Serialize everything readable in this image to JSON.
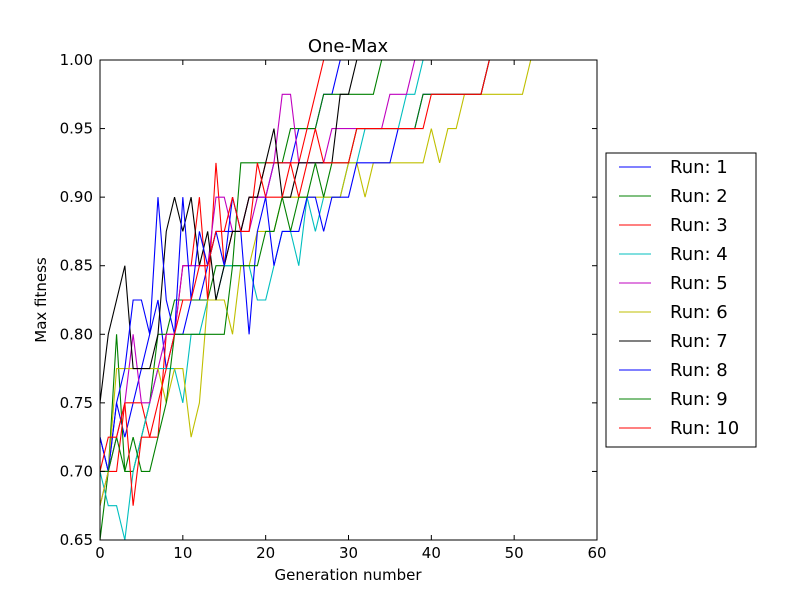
{
  "chart_data": {
    "type": "line",
    "title": "One-Max",
    "xlabel": "Generation number",
    "ylabel": "Max fitness",
    "xlim": [
      0,
      60
    ],
    "ylim": [
      0.65,
      1.0
    ],
    "xticks": [
      "0",
      "10",
      "20",
      "30",
      "40",
      "50",
      "60"
    ],
    "yticks": [
      "0.65",
      "0.70",
      "0.75",
      "0.80",
      "0.85",
      "0.90",
      "0.95",
      "1.00"
    ],
    "grid": false,
    "legend_position": "outside-right",
    "series": [
      {
        "name": "Run: 1",
        "color": "#0000ff",
        "x": [
          0,
          1,
          2,
          3,
          4,
          5,
          6,
          7,
          8,
          9,
          10,
          11,
          12,
          13,
          14,
          15,
          16,
          17,
          18,
          19,
          20,
          21,
          22,
          23,
          24,
          25,
          26,
          27,
          28,
          29,
          30,
          31,
          32,
          33,
          34,
          35,
          36,
          37,
          38
        ],
        "y": [
          0.725,
          0.7,
          0.75,
          0.725,
          0.75,
          0.775,
          0.8,
          0.825,
          0.775,
          0.8,
          0.8,
          0.825,
          0.825,
          0.85,
          0.875,
          0.875,
          0.875,
          0.875,
          0.9,
          0.9,
          0.9,
          0.925,
          0.925,
          0.925,
          0.95,
          0.95,
          0.95,
          0.975,
          0.975,
          1.0,
          1.0,
          1.0,
          1.0,
          1.0,
          1.0,
          1.0,
          1.0,
          1.0,
          1.0
        ]
      },
      {
        "name": "Run: 2",
        "color": "#008000",
        "x": [
          0,
          1,
          2,
          3,
          4,
          5,
          6,
          7,
          8,
          9,
          10,
          11,
          12,
          13,
          14,
          15,
          16,
          17,
          18,
          19,
          20,
          21,
          22,
          23,
          24,
          25,
          26,
          27,
          28,
          29,
          30,
          31,
          32,
          33,
          34,
          35,
          36,
          37
        ],
        "y": [
          0.65,
          0.7,
          0.8,
          0.7,
          0.7,
          0.725,
          0.75,
          0.8,
          0.8,
          0.825,
          0.825,
          0.825,
          0.825,
          0.825,
          0.85,
          0.85,
          0.85,
          0.925,
          0.925,
          0.925,
          0.925,
          0.925,
          0.925,
          0.95,
          0.95,
          0.95,
          0.95,
          0.975,
          0.975,
          0.975,
          0.975,
          0.975,
          0.975,
          0.975,
          1.0,
          1.0,
          1.0,
          1.0
        ]
      },
      {
        "name": "Run: 3",
        "color": "#ff0000",
        "x": [
          0,
          1,
          2,
          3,
          4,
          5,
          6,
          7,
          8,
          9,
          10,
          11,
          12,
          13,
          14,
          15,
          16,
          17,
          18,
          19,
          20,
          21,
          22,
          23,
          24,
          25,
          26,
          27
        ],
        "y": [
          0.7,
          0.7,
          0.7,
          0.75,
          0.75,
          0.75,
          0.725,
          0.725,
          0.8,
          0.8,
          0.85,
          0.85,
          0.9,
          0.825,
          0.925,
          0.85,
          0.875,
          0.875,
          0.9,
          0.9,
          0.925,
          0.925,
          0.925,
          0.925,
          0.925,
          0.95,
          0.975,
          1.0
        ]
      },
      {
        "name": "Run: 4",
        "color": "#00bfbf",
        "x": [
          0,
          1,
          2,
          3,
          4,
          5,
          6,
          7,
          8,
          9,
          10,
          11,
          12,
          13,
          14,
          15,
          16,
          17,
          18,
          19,
          20,
          21,
          22,
          23,
          24,
          25,
          26,
          27,
          28,
          29,
          30,
          31,
          32,
          33,
          34,
          35,
          36,
          37,
          38,
          39,
          40,
          41
        ],
        "y": [
          0.7,
          0.675,
          0.675,
          0.65,
          0.7,
          0.725,
          0.75,
          0.775,
          0.775,
          0.775,
          0.75,
          0.8,
          0.8,
          0.825,
          0.825,
          0.85,
          0.85,
          0.85,
          0.85,
          0.825,
          0.825,
          0.85,
          0.875,
          0.875,
          0.85,
          0.9,
          0.875,
          0.9,
          0.9,
          0.9,
          0.925,
          0.925,
          0.95,
          0.95,
          0.95,
          0.95,
          0.95,
          0.975,
          0.975,
          1.0,
          1.0,
          1.0
        ]
      },
      {
        "name": "Run: 5",
        "color": "#bf00bf",
        "x": [
          0,
          1,
          2,
          3,
          4,
          5,
          6,
          7,
          8,
          9,
          10,
          11,
          12,
          13,
          14,
          15,
          16,
          17,
          18,
          19,
          20,
          21,
          22,
          23,
          24,
          25,
          26,
          27,
          28,
          29,
          30,
          31,
          32,
          33,
          34,
          35,
          36,
          37,
          38,
          39
        ],
        "y": [
          0.675,
          0.7,
          0.725,
          0.75,
          0.8,
          0.75,
          0.75,
          0.775,
          0.8,
          0.8,
          0.85,
          0.85,
          0.85,
          0.85,
          0.9,
          0.9,
          0.875,
          0.875,
          0.875,
          0.9,
          0.9,
          0.925,
          0.975,
          0.975,
          0.925,
          0.925,
          0.925,
          0.925,
          0.95,
          0.95,
          0.95,
          0.95,
          0.95,
          0.95,
          0.95,
          0.975,
          0.975,
          0.975,
          1.0,
          1.0
        ]
      },
      {
        "name": "Run: 6",
        "color": "#bfbf00",
        "x": [
          0,
          1,
          2,
          3,
          4,
          5,
          6,
          7,
          8,
          9,
          10,
          11,
          12,
          13,
          14,
          15,
          16,
          17,
          18,
          19,
          20,
          21,
          22,
          23,
          24,
          25,
          26,
          27,
          28,
          29,
          30,
          31,
          32,
          33,
          34,
          35,
          36,
          37,
          38,
          39,
          40,
          41,
          42,
          43,
          44,
          45,
          46,
          47,
          48,
          49,
          50,
          51,
          52
        ],
        "y": [
          0.675,
          0.7,
          0.775,
          0.775,
          0.775,
          0.775,
          0.775,
          0.775,
          0.75,
          0.775,
          0.775,
          0.725,
          0.75,
          0.825,
          0.825,
          0.825,
          0.8,
          0.85,
          0.85,
          0.875,
          0.875,
          0.875,
          0.9,
          0.9,
          0.9,
          0.9,
          0.9,
          0.9,
          0.9,
          0.9,
          0.925,
          0.925,
          0.9,
          0.925,
          0.925,
          0.925,
          0.925,
          0.925,
          0.925,
          0.925,
          0.95,
          0.925,
          0.95,
          0.95,
          0.975,
          0.975,
          0.975,
          0.975,
          0.975,
          0.975,
          0.975,
          0.975,
          1.0
        ]
      },
      {
        "name": "Run: 7",
        "color": "#000000",
        "x": [
          0,
          1,
          2,
          3,
          4,
          5,
          6,
          7,
          8,
          9,
          10,
          11,
          12,
          13,
          14,
          15,
          16,
          17,
          18,
          19,
          20,
          21,
          22,
          23,
          24,
          25,
          26,
          27,
          28,
          29,
          30,
          31
        ],
        "y": [
          0.75,
          0.8,
          0.825,
          0.85,
          0.775,
          0.775,
          0.775,
          0.8,
          0.875,
          0.9,
          0.875,
          0.9,
          0.85,
          0.875,
          0.825,
          0.85,
          0.875,
          0.875,
          0.9,
          0.9,
          0.925,
          0.95,
          0.9,
          0.9,
          0.925,
          0.925,
          0.925,
          0.925,
          0.925,
          0.975,
          0.975,
          1.0
        ]
      },
      {
        "name": "Run: 8",
        "color": "#0000ff",
        "x": [
          0,
          1,
          2,
          3,
          4,
          5,
          6,
          7,
          8,
          9,
          10,
          11,
          12,
          13,
          14,
          15,
          16,
          17,
          18,
          19,
          20,
          21,
          22,
          23,
          24,
          25,
          26,
          27,
          28,
          29,
          30,
          31,
          32,
          33,
          34,
          35,
          36,
          37,
          38,
          39,
          40,
          41,
          42,
          43,
          44,
          45,
          46,
          47,
          48
        ],
        "y": [
          0.725,
          0.7,
          0.75,
          0.775,
          0.825,
          0.825,
          0.8,
          0.9,
          0.825,
          0.8,
          0.9,
          0.825,
          0.875,
          0.85,
          0.875,
          0.85,
          0.9,
          0.875,
          0.8,
          0.875,
          0.9,
          0.85,
          0.875,
          0.875,
          0.875,
          0.9,
          0.9,
          0.875,
          0.9,
          0.9,
          0.9,
          0.925,
          0.925,
          0.925,
          0.925,
          0.925,
          0.95,
          0.95,
          0.95,
          0.975,
          0.975,
          0.975,
          0.975,
          0.975,
          0.975,
          0.975,
          0.975,
          1.0,
          1.0
        ]
      },
      {
        "name": "Run: 9",
        "color": "#008000",
        "x": [
          0,
          1,
          2,
          3,
          4,
          5,
          6,
          7,
          8,
          9,
          10,
          11,
          12,
          13,
          14,
          15,
          16,
          17,
          18,
          19,
          20,
          21,
          22,
          23,
          24,
          25,
          26,
          27,
          28,
          29,
          30,
          31,
          32,
          33,
          34,
          35,
          36,
          37,
          38,
          39,
          40,
          41,
          42,
          43,
          44,
          45,
          46,
          47,
          48
        ],
        "y": [
          0.7,
          0.7,
          0.725,
          0.7,
          0.725,
          0.7,
          0.7,
          0.725,
          0.75,
          0.8,
          0.8,
          0.8,
          0.8,
          0.8,
          0.8,
          0.8,
          0.85,
          0.85,
          0.85,
          0.85,
          0.875,
          0.875,
          0.9,
          0.875,
          0.9,
          0.9,
          0.925,
          0.9,
          0.925,
          0.925,
          0.925,
          0.95,
          0.95,
          0.95,
          0.95,
          0.95,
          0.95,
          0.95,
          0.95,
          0.975,
          0.975,
          0.975,
          0.975,
          0.975,
          0.975,
          0.975,
          0.975,
          1.0,
          1.0
        ]
      },
      {
        "name": "Run: 10",
        "color": "#ff0000",
        "x": [
          0,
          1,
          2,
          3,
          4,
          5,
          6,
          7,
          8,
          9,
          10,
          11,
          12,
          13,
          14,
          15,
          16,
          17,
          18,
          19,
          20,
          21,
          22,
          23,
          24,
          25,
          26,
          27,
          28,
          29,
          30,
          31,
          32,
          33,
          34,
          35,
          36,
          37,
          38,
          39,
          40,
          41,
          42,
          43,
          44,
          45,
          46,
          47,
          48
        ],
        "y": [
          0.7,
          0.725,
          0.725,
          0.75,
          0.675,
          0.725,
          0.725,
          0.75,
          0.775,
          0.8,
          0.825,
          0.825,
          0.85,
          0.85,
          0.875,
          0.875,
          0.9,
          0.875,
          0.875,
          0.925,
          0.9,
          0.9,
          0.9,
          0.925,
          0.9,
          0.925,
          0.95,
          0.925,
          0.925,
          0.925,
          0.925,
          0.95,
          0.95,
          0.95,
          0.95,
          0.95,
          0.95,
          0.95,
          0.95,
          0.95,
          0.975,
          0.975,
          0.975,
          0.975,
          0.975,
          0.975,
          0.975,
          1.0,
          1.0
        ]
      }
    ]
  }
}
